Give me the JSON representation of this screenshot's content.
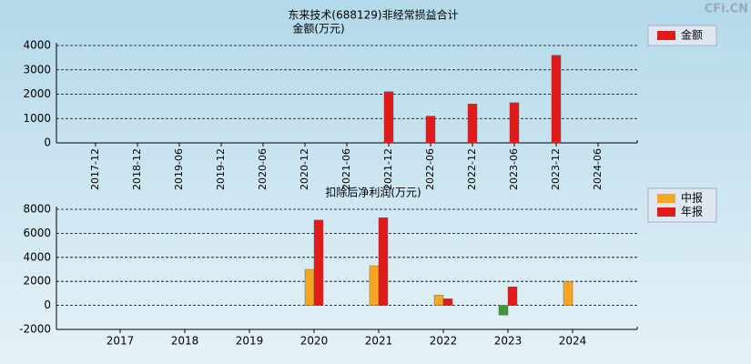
{
  "watermark": "CFi.CN",
  "chart_data": [
    {
      "type": "bar",
      "title": "东来技术(688129)非经常损益合计",
      "subtitle": "金额(万元)",
      "categories": [
        "2017-12",
        "2018-12",
        "2019-06",
        "2019-12",
        "2020-06",
        "2020-12",
        "2021-06",
        "2021-12",
        "2022-06",
        "2022-12",
        "2023-06",
        "2023-12",
        "2024-06"
      ],
      "series": [
        {
          "name": "金额",
          "color": "#e31a1a",
          "values": [
            null,
            null,
            null,
            null,
            null,
            null,
            null,
            2100,
            1100,
            1600,
            1650,
            3600,
            null
          ]
        }
      ],
      "ylim": [
        0,
        4000
      ],
      "yticks": [
        0,
        1000,
        2000,
        3000,
        4000
      ],
      "grid": true,
      "legend": "right"
    },
    {
      "type": "bar",
      "title": "扣除后净利润(万元)",
      "categories": [
        "2017",
        "2018",
        "2019",
        "2020",
        "2021",
        "2022",
        "2023",
        "2024"
      ],
      "series": [
        {
          "name": "中报",
          "color": "#f5a623",
          "negative_color": "#3a9a3a",
          "values": [
            null,
            null,
            null,
            3000,
            3300,
            850,
            -800,
            2000
          ]
        },
        {
          "name": "年报",
          "color": "#e31a1a",
          "negative_color": "#3a9a3a",
          "values": [
            null,
            null,
            null,
            7100,
            7300,
            550,
            1550,
            null
          ]
        }
      ],
      "ylim": [
        -2000,
        8000
      ],
      "yticks": [
        -2000,
        0,
        2000,
        4000,
        6000,
        8000
      ],
      "grid": true,
      "legend": "right"
    }
  ]
}
